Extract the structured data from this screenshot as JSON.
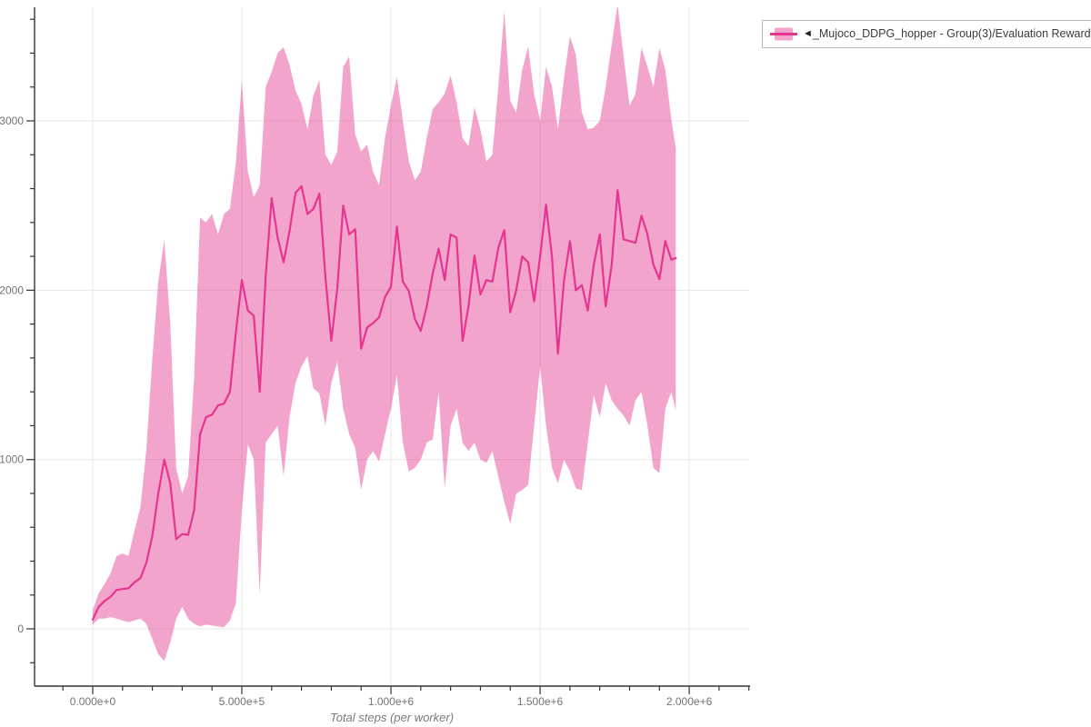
{
  "legend": {
    "marker_glyph": "◄",
    "items": [
      {
        "label": "_Mujoco_DDPG_hopper - Group(3)/Evaluation Reward",
        "color": "#e5358f"
      }
    ]
  },
  "chart_data": {
    "type": "line",
    "title": "",
    "xlabel": "Total steps (per worker)",
    "ylabel": "",
    "grid": "major",
    "legend_position": "top-right",
    "xlim": [
      -195000,
      2204000
    ],
    "ylim": [
      -338,
      3671
    ],
    "x_minor_step": 100000,
    "y_minor_step": 200,
    "x_ticks": [
      {
        "value": 0,
        "label": "0.000e+0"
      },
      {
        "value": 500000,
        "label": "5.000e+5"
      },
      {
        "value": 1000000,
        "label": "1.000e+6"
      },
      {
        "value": 1500000,
        "label": "1.500e+6"
      },
      {
        "value": 2000000,
        "label": "2.000e+6"
      }
    ],
    "y_ticks": [
      {
        "value": 0,
        "label": "0"
      },
      {
        "value": 1000,
        "label": "1000"
      },
      {
        "value": 2000,
        "label": "2000"
      },
      {
        "value": 3000,
        "label": "3000"
      }
    ],
    "colors": {
      "line": "#e5358f",
      "band": "rgba(229,53,143,0.45)",
      "band_solid": "#f3a4cc",
      "grid": "#e7e7e7",
      "axis": "#333333",
      "tick_label": "#737373",
      "axis_title": "#7a7a7a"
    },
    "series": [
      {
        "name": "_Mujoco_DDPG_hopper - Group(3)/Evaluation Reward",
        "x": [
          0,
          20000,
          40000,
          60000,
          80000,
          100000,
          120000,
          140000,
          160000,
          180000,
          200000,
          220000,
          240000,
          260000,
          280000,
          300000,
          320000,
          340000,
          360000,
          380000,
          400000,
          420000,
          440000,
          460000,
          480000,
          500000,
          520000,
          540000,
          560000,
          580000,
          600000,
          620000,
          640000,
          660000,
          680000,
          700000,
          720000,
          740000,
          760000,
          780000,
          800000,
          820000,
          840000,
          860000,
          880000,
          900000,
          920000,
          940000,
          960000,
          980000,
          1000000,
          1020000,
          1040000,
          1060000,
          1080000,
          1100000,
          1120000,
          1140000,
          1160000,
          1180000,
          1200000,
          1220000,
          1240000,
          1260000,
          1280000,
          1300000,
          1320000,
          1340000,
          1360000,
          1380000,
          1400000,
          1420000,
          1440000,
          1460000,
          1480000,
          1500000,
          1520000,
          1540000,
          1560000,
          1580000,
          1600000,
          1620000,
          1640000,
          1660000,
          1680000,
          1700000,
          1720000,
          1740000,
          1760000,
          1780000,
          1800000,
          1820000,
          1840000,
          1860000,
          1880000,
          1900000,
          1920000,
          1940000,
          1955000
        ],
        "mean": [
          55,
          130,
          165,
          190,
          230,
          235,
          240,
          275,
          300,
          390,
          550,
          800,
          1000,
          860,
          530,
          560,
          555,
          700,
          1150,
          1250,
          1265,
          1320,
          1330,
          1400,
          1750,
          2060,
          1880,
          1850,
          1400,
          2080,
          2545,
          2310,
          2165,
          2350,
          2575,
          2615,
          2450,
          2480,
          2570,
          2080,
          1700,
          2010,
          2500,
          2330,
          2360,
          1655,
          1780,
          1805,
          1840,
          1960,
          2020,
          2375,
          2050,
          1995,
          1830,
          1760,
          1905,
          2100,
          2245,
          2060,
          2330,
          2310,
          1700,
          1905,
          2205,
          1975,
          2060,
          2050,
          2250,
          2355,
          1870,
          2000,
          2200,
          2165,
          1935,
          2200,
          2505,
          2195,
          1625,
          2055,
          2290,
          2000,
          2030,
          1880,
          2150,
          2330,
          1905,
          2150,
          2590,
          2300,
          2290,
          2280,
          2440,
          2330,
          2150,
          2065,
          2290,
          2180,
          2190
        ],
        "band_upper": [
          110,
          210,
          265,
          330,
          430,
          445,
          430,
          580,
          720,
          1060,
          1600,
          2050,
          2300,
          1800,
          950,
          800,
          900,
          1480,
          2430,
          2400,
          2450,
          2330,
          2450,
          2480,
          2750,
          3240,
          2700,
          2550,
          2620,
          3200,
          3290,
          3400,
          3435,
          3330,
          3180,
          3100,
          2950,
          3150,
          3240,
          2800,
          2740,
          2820,
          3320,
          3380,
          2920,
          2820,
          2860,
          2700,
          2620,
          2900,
          3090,
          3260,
          3000,
          2760,
          2650,
          2700,
          2900,
          3070,
          3110,
          3160,
          3270,
          3110,
          2900,
          2850,
          3080,
          2950,
          2760,
          2800,
          3200,
          3650,
          3120,
          3050,
          3300,
          3440,
          3160,
          3000,
          3320,
          3200,
          2950,
          3250,
          3500,
          3390,
          3050,
          2950,
          2960,
          3000,
          3200,
          3450,
          3690,
          3380,
          3090,
          3160,
          3430,
          3320,
          3200,
          3430,
          3300,
          3010,
          2840
        ],
        "band_lower": [
          25,
          60,
          60,
          70,
          60,
          50,
          40,
          50,
          60,
          30,
          -60,
          -150,
          -190,
          -80,
          60,
          130,
          60,
          30,
          15,
          25,
          20,
          15,
          10,
          50,
          150,
          700,
          1090,
          1000,
          200,
          1100,
          1150,
          1200,
          900,
          1250,
          1450,
          1550,
          1610,
          1420,
          1390,
          1200,
          1450,
          1580,
          1300,
          1150,
          1070,
          820,
          1000,
          1050,
          990,
          1150,
          1300,
          1500,
          1100,
          930,
          950,
          1000,
          1100,
          1120,
          1400,
          830,
          1200,
          1300,
          1100,
          1050,
          1100,
          1000,
          980,
          1050,
          900,
          750,
          620,
          800,
          820,
          850,
          1200,
          1550,
          1200,
          950,
          860,
          1000,
          930,
          830,
          820,
          1100,
          1380,
          1250,
          1450,
          1350,
          1300,
          1260,
          1200,
          1350,
          1400,
          1200,
          950,
          920,
          1300,
          1400,
          1290
        ]
      }
    ]
  }
}
